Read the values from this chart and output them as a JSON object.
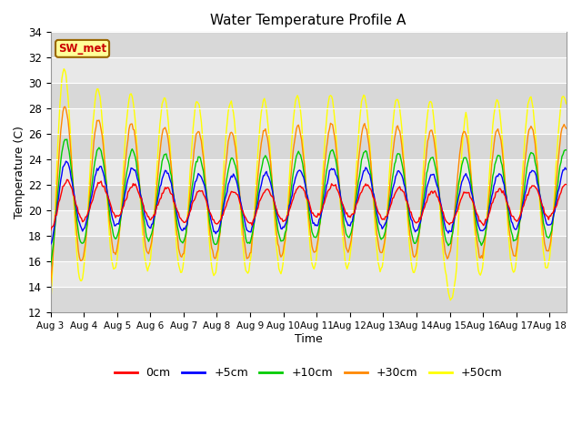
{
  "title": "Water Temperature Profile A",
  "xlabel": "Time",
  "ylabel": "Temperature (C)",
  "ylim": [
    12,
    34
  ],
  "yticks": [
    12,
    14,
    16,
    18,
    20,
    22,
    24,
    26,
    28,
    30,
    32,
    34
  ],
  "x_labels": [
    "Aug 3",
    "Aug 4",
    "Aug 5",
    "Aug 6",
    "Aug 7",
    "Aug 8",
    "Aug 9",
    "Aug 10",
    "Aug 11",
    "Aug 12",
    "Aug 13",
    "Aug 14",
    "Aug 15",
    "Aug 16",
    "Aug 17",
    "Aug 18"
  ],
  "legend_entries": [
    "0cm",
    "+5cm",
    "+10cm",
    "+30cm",
    "+50cm"
  ],
  "legend_colors": [
    "#ff0000",
    "#0000ff",
    "#00cc00",
    "#ff8800",
    "#ffff00"
  ],
  "annotation_text": "SW_met",
  "annotation_color": "#cc0000",
  "annotation_bg": "#ffff99",
  "annotation_border": "#996600",
  "series_colors": [
    "#ff0000",
    "#0000ff",
    "#00cc00",
    "#ff8800",
    "#ffff00"
  ],
  "background_color": "#e8e8e8",
  "n_days": 15.5,
  "n_points": 500,
  "figsize": [
    6.4,
    4.8
  ],
  "dpi": 100
}
